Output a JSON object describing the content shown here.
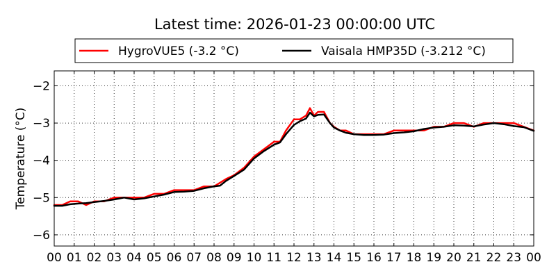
{
  "chart_data": {
    "type": "line",
    "title": "Latest time: 2026-01-23 00:00:00 UTC",
    "xlabel": "",
    "ylabel": "Temperature (°C)",
    "xlim": [
      0,
      24
    ],
    "ylim": [
      -6.3,
      -1.6
    ],
    "grid": true,
    "legend_position": "top, above plot",
    "x_tick_labels": [
      "00",
      "01",
      "02",
      "03",
      "04",
      "05",
      "06",
      "07",
      "08",
      "09",
      "10",
      "11",
      "12",
      "13",
      "14",
      "15",
      "16",
      "17",
      "18",
      "19",
      "20",
      "21",
      "22",
      "23",
      "00"
    ],
    "y_ticks": [
      -2,
      -3,
      -4,
      -5,
      -6
    ],
    "y_tick_labels": [
      "−2",
      "−3",
      "−4",
      "−5",
      "−6"
    ],
    "series": [
      {
        "name": "HygroVUE5 (-3.2 °C)",
        "color": "#ff0000",
        "x": [
          0.0,
          0.4,
          0.8,
          1.2,
          1.6,
          2.0,
          2.5,
          3.0,
          3.5,
          4.0,
          4.5,
          5.0,
          5.5,
          6.0,
          6.5,
          7.0,
          7.5,
          8.0,
          8.3,
          8.6,
          9.0,
          9.5,
          10.0,
          10.5,
          11.0,
          11.3,
          11.6,
          12.0,
          12.3,
          12.6,
          12.8,
          13.0,
          13.2,
          13.5,
          13.8,
          14.0,
          14.3,
          14.6,
          15.0,
          15.5,
          16.0,
          16.5,
          17.0,
          17.5,
          18.0,
          18.5,
          19.0,
          19.5,
          20.0,
          20.5,
          21.0,
          21.5,
          22.0,
          22.5,
          23.0,
          23.5,
          24.0
        ],
        "y": [
          -5.2,
          -5.2,
          -5.1,
          -5.1,
          -5.2,
          -5.1,
          -5.1,
          -5.0,
          -5.0,
          -5.0,
          -5.0,
          -4.9,
          -4.9,
          -4.8,
          -4.8,
          -4.8,
          -4.7,
          -4.7,
          -4.6,
          -4.5,
          -4.4,
          -4.2,
          -3.9,
          -3.7,
          -3.5,
          -3.5,
          -3.2,
          -2.9,
          -2.9,
          -2.8,
          -2.6,
          -2.8,
          -2.7,
          -2.7,
          -3.0,
          -3.1,
          -3.2,
          -3.2,
          -3.3,
          -3.3,
          -3.3,
          -3.3,
          -3.2,
          -3.2,
          -3.2,
          -3.2,
          -3.1,
          -3.1,
          -3.0,
          -3.0,
          -3.1,
          -3.0,
          -3.0,
          -3.0,
          -3.0,
          -3.1,
          -3.2
        ]
      },
      {
        "name": "Vaisala HMP35D (-3.212 °C)",
        "color": "#000000",
        "x": [
          0.0,
          0.4,
          0.8,
          1.2,
          1.6,
          2.0,
          2.5,
          3.0,
          3.5,
          4.0,
          4.5,
          5.0,
          5.5,
          6.0,
          6.5,
          7.0,
          7.5,
          8.0,
          8.3,
          8.6,
          9.0,
          9.5,
          10.0,
          10.5,
          11.0,
          11.3,
          11.6,
          12.0,
          12.3,
          12.6,
          12.8,
          13.0,
          13.2,
          13.5,
          13.8,
          14.0,
          14.3,
          14.6,
          15.0,
          15.5,
          16.0,
          16.5,
          17.0,
          17.5,
          18.0,
          18.5,
          19.0,
          19.5,
          20.0,
          20.5,
          21.0,
          21.5,
          22.0,
          22.5,
          23.0,
          23.5,
          24.0
        ],
        "y": [
          -5.22,
          -5.22,
          -5.18,
          -5.16,
          -5.15,
          -5.12,
          -5.09,
          -5.05,
          -5.0,
          -5.05,
          -5.02,
          -4.97,
          -4.92,
          -4.85,
          -4.84,
          -4.82,
          -4.75,
          -4.7,
          -4.68,
          -4.55,
          -4.42,
          -4.25,
          -3.95,
          -3.75,
          -3.58,
          -3.52,
          -3.3,
          -3.05,
          -2.95,
          -2.88,
          -2.72,
          -2.82,
          -2.78,
          -2.77,
          -3.0,
          -3.12,
          -3.2,
          -3.26,
          -3.3,
          -3.32,
          -3.32,
          -3.31,
          -3.27,
          -3.25,
          -3.22,
          -3.16,
          -3.12,
          -3.1,
          -3.06,
          -3.07,
          -3.09,
          -3.04,
          -3.0,
          -3.03,
          -3.08,
          -3.11,
          -3.21
        ]
      }
    ]
  }
}
